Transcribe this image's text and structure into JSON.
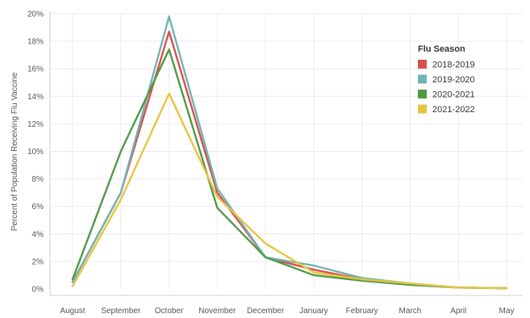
{
  "chart_data": {
    "type": "line",
    "ylabel": "Percent of Population Receiving Flu Vaccine",
    "categories": [
      "August",
      "September",
      "October",
      "November",
      "December",
      "January",
      "February",
      "March",
      "April",
      "May"
    ],
    "y_ticks": [
      "0%",
      "2%",
      "4%",
      "6%",
      "8%",
      "10%",
      "12%",
      "14%",
      "16%",
      "18%",
      "20%"
    ],
    "ylim": [
      0,
      20
    ],
    "grid": true,
    "legend": {
      "title": "Flu Season",
      "placement": "top-right"
    },
    "series": [
      {
        "name": "2018-2019",
        "color": "#d94f4f",
        "values": [
          0.5,
          7.0,
          18.7,
          7.0,
          2.3,
          1.4,
          0.7,
          0.35,
          0.1,
          0.05
        ]
      },
      {
        "name": "2019-2020",
        "color": "#72b3b3",
        "values": [
          0.5,
          7.0,
          19.8,
          7.3,
          2.3,
          1.7,
          0.8,
          0.4,
          0.1,
          0.05
        ]
      },
      {
        "name": "2020-2021",
        "color": "#4f9a44",
        "values": [
          0.7,
          10.0,
          17.4,
          5.9,
          2.3,
          1.0,
          0.6,
          0.3,
          0.1,
          0.05
        ]
      },
      {
        "name": "2021-2022",
        "color": "#e8c440",
        "values": [
          0.2,
          6.5,
          14.2,
          6.7,
          3.3,
          1.2,
          0.7,
          0.4,
          0.1,
          0.05
        ]
      }
    ]
  }
}
